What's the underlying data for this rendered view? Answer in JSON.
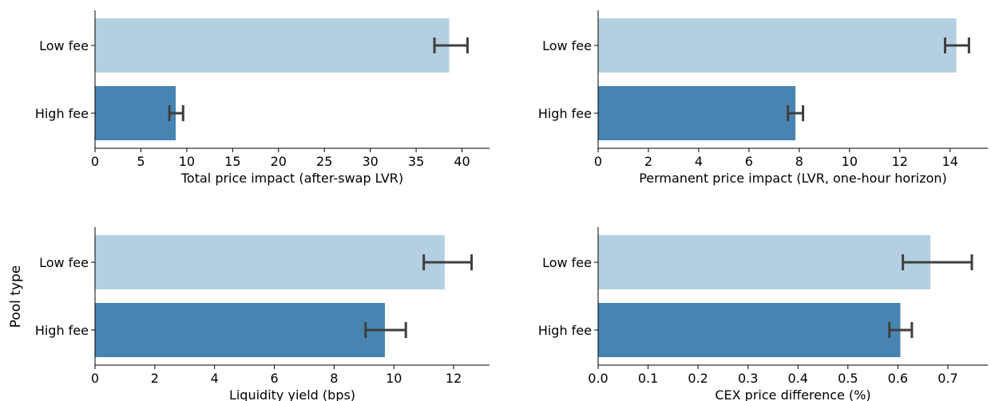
{
  "figure": {
    "shared_ylabel": "Pool type"
  },
  "chart_data": [
    {
      "type": "bar",
      "orientation": "horizontal",
      "categories": [
        "Low fee",
        "High fee"
      ],
      "values": [
        38.6,
        8.8
      ],
      "error_low": [
        37.0,
        8.1
      ],
      "error_high": [
        40.6,
        9.6
      ],
      "colors": [
        "#b3cfe1",
        "#4884b1"
      ],
      "xlabel": "Total price impact (after-swap LVR)",
      "ylabel": "",
      "xlim": [
        0,
        43
      ],
      "xticks": [
        0,
        5,
        10,
        15,
        20,
        25,
        30,
        35,
        40
      ],
      "tick_decimals": 0,
      "grid": false
    },
    {
      "type": "bar",
      "orientation": "horizontal",
      "categories": [
        "Low fee",
        "High fee"
      ],
      "values": [
        14.25,
        7.85
      ],
      "error_low": [
        13.8,
        7.55
      ],
      "error_high": [
        14.75,
        8.15
      ],
      "colors": [
        "#b3cfe1",
        "#4884b1"
      ],
      "xlabel": "Permanent price impact (LVR, one-hour horizon)",
      "ylabel": "",
      "xlim": [
        0,
        15.5
      ],
      "xticks": [
        0,
        2,
        4,
        6,
        8,
        10,
        12,
        14
      ],
      "tick_decimals": 0,
      "grid": false
    },
    {
      "type": "bar",
      "orientation": "horizontal",
      "categories": [
        "Low fee",
        "High fee"
      ],
      "values": [
        11.7,
        9.7
      ],
      "error_low": [
        11.0,
        9.05
      ],
      "error_high": [
        12.6,
        10.4
      ],
      "colors": [
        "#b3cfe1",
        "#4884b1"
      ],
      "xlabel": "Liquidity yield (bps)",
      "ylabel": "Pool type",
      "xlim": [
        0,
        13.2
      ],
      "xticks": [
        0,
        2,
        4,
        6,
        8,
        10,
        12
      ],
      "tick_decimals": 0,
      "grid": false
    },
    {
      "type": "bar",
      "orientation": "horizontal",
      "categories": [
        "Low fee",
        "High fee"
      ],
      "values": [
        0.665,
        0.605
      ],
      "error_low": [
        0.61,
        0.583
      ],
      "error_high": [
        0.748,
        0.628
      ],
      "colors": [
        "#b3cfe1",
        "#4884b1"
      ],
      "xlabel": "CEX price difference (%)",
      "ylabel": "",
      "xlim": [
        0,
        0.78
      ],
      "xticks": [
        0.0,
        0.1,
        0.2,
        0.3,
        0.4,
        0.5,
        0.6,
        0.7
      ],
      "tick_decimals": 1,
      "grid": false
    }
  ]
}
